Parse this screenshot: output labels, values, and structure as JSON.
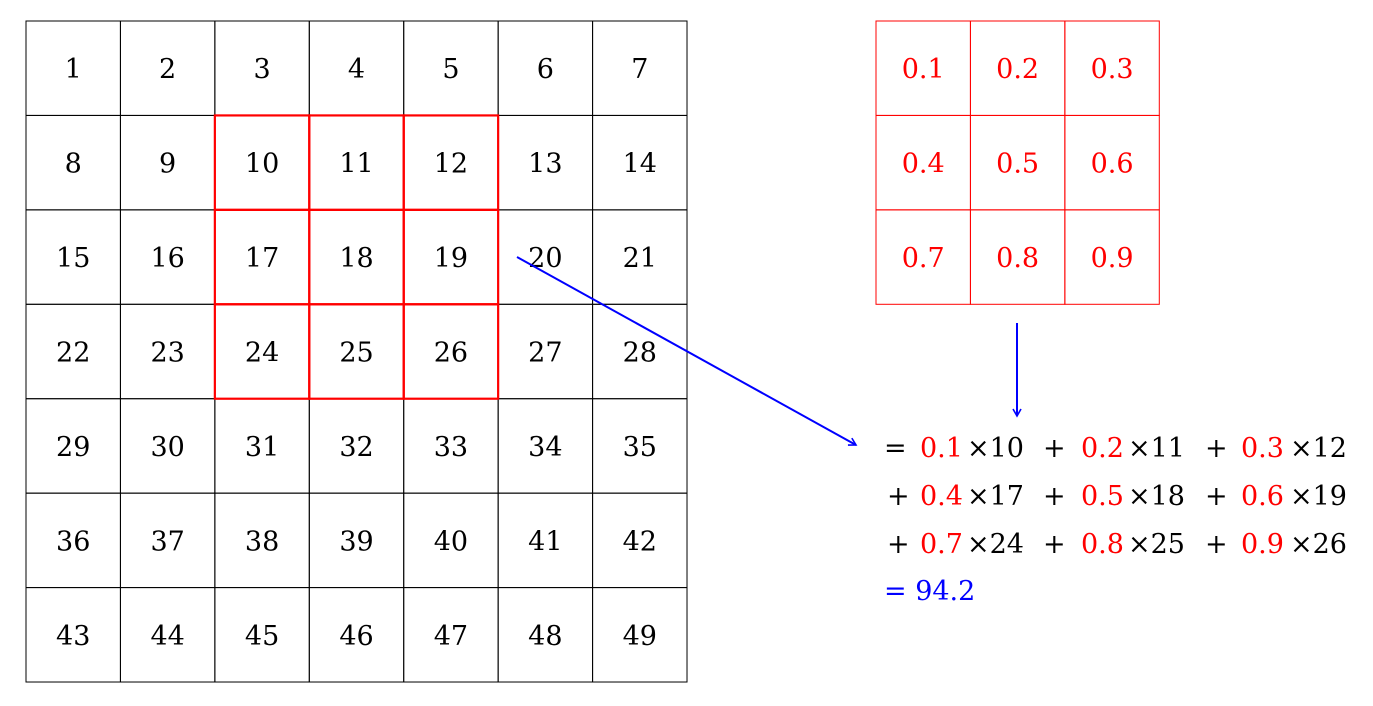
{
  "input_grid": {
    "rows": [
      [
        "1",
        "2",
        "3",
        "4",
        "5",
        "6",
        "7"
      ],
      [
        "8",
        "9",
        "10",
        "11",
        "12",
        "13",
        "14"
      ],
      [
        "15",
        "16",
        "17",
        "18",
        "19",
        "20",
        "21"
      ],
      [
        "22",
        "23",
        "24",
        "25",
        "26",
        "27",
        "28"
      ],
      [
        "29",
        "30",
        "31",
        "32",
        "33",
        "34",
        "35"
      ],
      [
        "36",
        "37",
        "38",
        "39",
        "40",
        "41",
        "42"
      ],
      [
        "43",
        "44",
        "45",
        "46",
        "47",
        "48",
        "49"
      ]
    ],
    "highlight": {
      "row_start": 1,
      "col_start": 2,
      "size": 3
    }
  },
  "kernel": {
    "rows": [
      [
        "0.1",
        "0.2",
        "0.3"
      ],
      [
        "0.4",
        "0.5",
        "0.6"
      ],
      [
        "0.7",
        "0.8",
        "0.9"
      ]
    ]
  },
  "equation": {
    "lines": [
      [
        {
          "op": "=",
          "w": "0.1",
          "v": "×10"
        },
        {
          "op": "+",
          "w": "0.2",
          "v": "×11"
        },
        {
          "op": "+",
          "w": "0.3",
          "v": "×12"
        }
      ],
      [
        {
          "op": "+",
          "w": "0.4",
          "v": "×17"
        },
        {
          "op": "+",
          "w": "0.5",
          "v": "×18"
        },
        {
          "op": "+",
          "w": "0.6",
          "v": "×19"
        }
      ],
      [
        {
          "op": "+",
          "w": "0.7",
          "v": "×24"
        },
        {
          "op": "+",
          "w": "0.8",
          "v": "×25"
        },
        {
          "op": "+",
          "w": "0.9",
          "v": "×26"
        }
      ]
    ],
    "result": "= 94.2"
  },
  "colors": {
    "highlight": "#ff0000",
    "arrow": "#0000ff",
    "text": "#000000"
  }
}
